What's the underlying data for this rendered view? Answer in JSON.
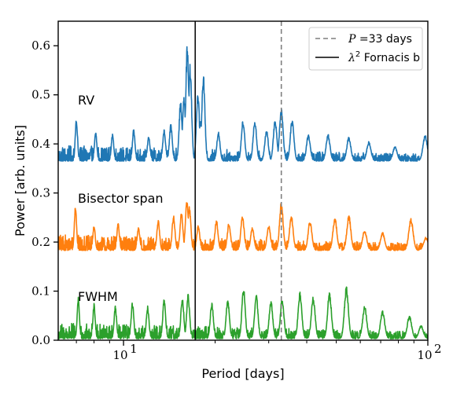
{
  "chart_data": {
    "type": "line",
    "xscale": "log",
    "xlabel": "Period [days]",
    "ylabel": "Power [arb. units]",
    "xlim": [
      6.1,
      100
    ],
    "ylim": [
      0.0,
      0.65
    ],
    "x_ticks": [
      {
        "value": 10,
        "base": "10",
        "exp": "1"
      },
      {
        "value": 100,
        "base": "10",
        "exp": "2"
      }
    ],
    "y_ticks": [
      "0.0",
      "0.1",
      "0.2",
      "0.3",
      "0.4",
      "0.5",
      "0.6"
    ],
    "y_tick_values": [
      0.0,
      0.1,
      0.2,
      0.3,
      0.4,
      0.5,
      0.6
    ],
    "vlines": [
      {
        "label_prefix": "P",
        "label_suffix": " =33 days",
        "x": 33,
        "style": "dashed",
        "color": "#7f7f7f"
      },
      {
        "label_prefix": "λ",
        "label_sup": "2",
        "label_suffix": " Fornacis b",
        "x": 17.2,
        "style": "solid",
        "color": "#000000"
      }
    ],
    "series": [
      {
        "name": "RV",
        "color": "#1f77b4",
        "baseline": 0.365,
        "peaks": [
          {
            "x": 16.2,
            "y": 0.608
          },
          {
            "x": 16.55,
            "y": 0.565
          },
          {
            "x": 15.8,
            "y": 0.498
          },
          {
            "x": 17.55,
            "y": 0.505
          },
          {
            "x": 18.3,
            "y": 0.542
          },
          {
            "x": 17.9,
            "y": 0.45
          },
          {
            "x": 15.4,
            "y": 0.49
          },
          {
            "x": 7.0,
            "y": 0.455
          },
          {
            "x": 8.1,
            "y": 0.425
          },
          {
            "x": 9.2,
            "y": 0.42
          },
          {
            "x": 10.8,
            "y": 0.43
          },
          {
            "x": 12.1,
            "y": 0.415
          },
          {
            "x": 13.6,
            "y": 0.43
          },
          {
            "x": 14.3,
            "y": 0.44
          },
          {
            "x": 20.5,
            "y": 0.425
          },
          {
            "x": 24.7,
            "y": 0.45
          },
          {
            "x": 27.0,
            "y": 0.45
          },
          {
            "x": 29.5,
            "y": 0.43
          },
          {
            "x": 33.0,
            "y": 0.475
          },
          {
            "x": 31.5,
            "y": 0.45
          },
          {
            "x": 35.8,
            "y": 0.45
          },
          {
            "x": 40.5,
            "y": 0.42
          },
          {
            "x": 47.0,
            "y": 0.42
          },
          {
            "x": 55.0,
            "y": 0.415
          },
          {
            "x": 64.0,
            "y": 0.405
          },
          {
            "x": 78.0,
            "y": 0.395
          },
          {
            "x": 98.0,
            "y": 0.418
          }
        ]
      },
      {
        "name": "Bisector span",
        "color": "#ff7f0e",
        "baseline": 0.183,
        "peaks": [
          {
            "x": 6.95,
            "y": 0.278
          },
          {
            "x": 8.0,
            "y": 0.235
          },
          {
            "x": 9.6,
            "y": 0.24
          },
          {
            "x": 11.2,
            "y": 0.23
          },
          {
            "x": 13.0,
            "y": 0.245
          },
          {
            "x": 14.6,
            "y": 0.255
          },
          {
            "x": 15.5,
            "y": 0.26
          },
          {
            "x": 16.15,
            "y": 0.285
          },
          {
            "x": 16.45,
            "y": 0.275
          },
          {
            "x": 17.6,
            "y": 0.235
          },
          {
            "x": 20.2,
            "y": 0.245
          },
          {
            "x": 22.2,
            "y": 0.24
          },
          {
            "x": 24.6,
            "y": 0.255
          },
          {
            "x": 26.5,
            "y": 0.23
          },
          {
            "x": 30.0,
            "y": 0.235
          },
          {
            "x": 33.0,
            "y": 0.283
          },
          {
            "x": 35.6,
            "y": 0.255
          },
          {
            "x": 41.0,
            "y": 0.245
          },
          {
            "x": 49.5,
            "y": 0.25
          },
          {
            "x": 55.0,
            "y": 0.255
          },
          {
            "x": 62.0,
            "y": 0.225
          },
          {
            "x": 71.0,
            "y": 0.22
          },
          {
            "x": 88.0,
            "y": 0.248
          },
          {
            "x": 98.5,
            "y": 0.21
          }
        ]
      },
      {
        "name": "FWHM",
        "color": "#2ca02c",
        "baseline": 0.003,
        "peaks": [
          {
            "x": 7.1,
            "y": 0.088
          },
          {
            "x": 8.0,
            "y": 0.075
          },
          {
            "x": 9.4,
            "y": 0.07
          },
          {
            "x": 10.7,
            "y": 0.078
          },
          {
            "x": 12.0,
            "y": 0.07
          },
          {
            "x": 13.6,
            "y": 0.085
          },
          {
            "x": 15.6,
            "y": 0.09
          },
          {
            "x": 16.3,
            "y": 0.095
          },
          {
            "x": 19.5,
            "y": 0.078
          },
          {
            "x": 22.0,
            "y": 0.085
          },
          {
            "x": 24.8,
            "y": 0.11
          },
          {
            "x": 27.3,
            "y": 0.095
          },
          {
            "x": 30.5,
            "y": 0.083
          },
          {
            "x": 33.2,
            "y": 0.088
          },
          {
            "x": 38.0,
            "y": 0.1
          },
          {
            "x": 42.0,
            "y": 0.09
          },
          {
            "x": 47.5,
            "y": 0.098
          },
          {
            "x": 54.0,
            "y": 0.11
          },
          {
            "x": 62.0,
            "y": 0.07
          },
          {
            "x": 71.0,
            "y": 0.06
          },
          {
            "x": 87.0,
            "y": 0.05
          },
          {
            "x": 95.0,
            "y": 0.03
          }
        ]
      }
    ],
    "series_labels": [
      {
        "text": "RV",
        "y": 0.49
      },
      {
        "text": "Bisector span",
        "y": 0.29
      },
      {
        "text": "FWHM",
        "y": 0.09
      }
    ],
    "legend_position": "upper right"
  }
}
